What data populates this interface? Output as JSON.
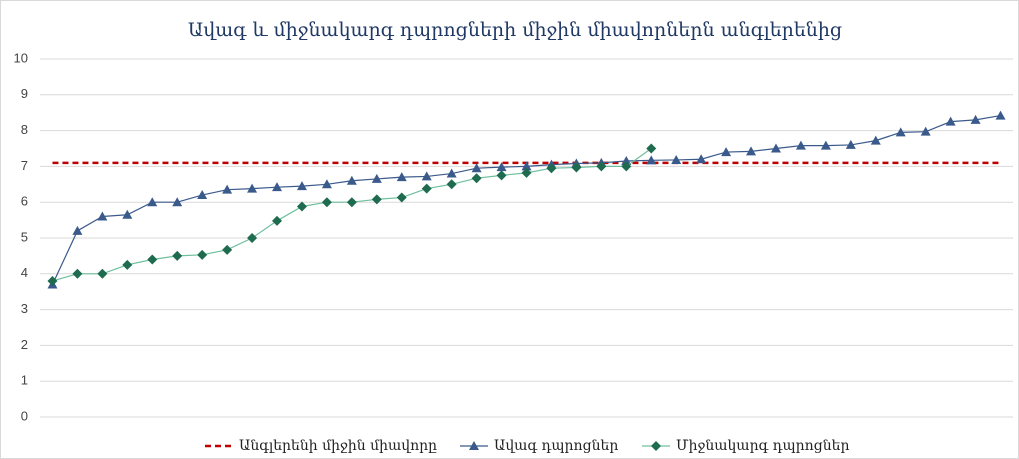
{
  "chart_data": {
    "type": "line",
    "title": "Ավագ և միջնակարգ դպրոցների միջին միավորներն անգլերենից",
    "ylim": [
      0,
      10
    ],
    "yticks": [
      0,
      1,
      2,
      3,
      4,
      5,
      6,
      7,
      8,
      9,
      10
    ],
    "grid": true,
    "legend": "bottom",
    "reference_line": {
      "name": "Անգլերենի միջին միավորը",
      "color": "#c00000",
      "value": 7.1
    },
    "series": [
      {
        "name": "Ավագ դպրոցներ",
        "color": "#3b5a8c",
        "marker": "triangle",
        "values": [
          3.7,
          5.2,
          5.6,
          5.65,
          6.0,
          6.0,
          6.2,
          6.35,
          6.38,
          6.42,
          6.45,
          6.5,
          6.6,
          6.65,
          6.7,
          6.72,
          6.8,
          6.95,
          6.98,
          7.0,
          7.05,
          7.08,
          7.1,
          7.15,
          7.17,
          7.18,
          7.2,
          7.4,
          7.42,
          7.5,
          7.58,
          7.58,
          7.6,
          7.72,
          7.95,
          7.97,
          8.25,
          8.3,
          8.42
        ]
      },
      {
        "name": "Միջնակարգ դպրոցներ",
        "color": "#1e6b4f",
        "line_color": "#6fbf9f",
        "marker": "diamond",
        "values": [
          3.8,
          4.0,
          4.0,
          4.25,
          4.4,
          4.5,
          4.53,
          4.67,
          5.0,
          5.48,
          5.88,
          6.0,
          6.0,
          6.08,
          6.13,
          6.38,
          6.5,
          6.67,
          6.75,
          6.82,
          6.95,
          6.97,
          7.0,
          7.0,
          7.5,
          null,
          null,
          null,
          null,
          null,
          null,
          null,
          null,
          null,
          null,
          null,
          null,
          null,
          null
        ]
      }
    ]
  }
}
